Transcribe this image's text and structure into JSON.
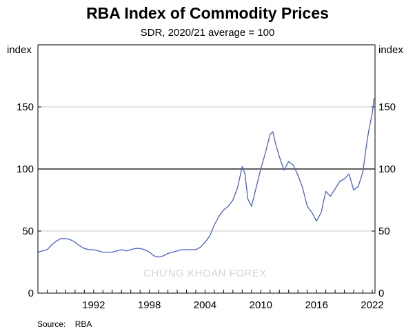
{
  "chart_data": {
    "type": "line",
    "title": "RBA Index of Commodity Prices",
    "subtitle": "SDR, 2020/21 average = 100",
    "ylabel_left": "index",
    "ylabel_right": "index",
    "ylim": [
      0,
      200
    ],
    "xlim": [
      1986.0,
      2022.3
    ],
    "x_ticks": [
      "1992",
      "1998",
      "2004",
      "2010",
      "2016",
      "2022"
    ],
    "y_ticks": [
      0,
      50,
      100,
      150
    ],
    "reference_line": 100,
    "grid": "horizontal",
    "line_color": "#4a5fc8",
    "series": [
      {
        "x": [
          1986.0,
          1986.5,
          1987.0,
          1987.5,
          1988.0,
          1988.5,
          1989.0,
          1989.5,
          1990.0,
          1990.5,
          1991.0,
          1991.5,
          1992.0,
          1992.5,
          1993.0,
          1993.5,
          1994.0,
          1994.5,
          1995.0,
          1995.5,
          1996.0,
          1996.5,
          1997.0,
          1997.5,
          1998.0,
          1998.5,
          1999.0,
          1999.5,
          2000.0,
          2000.5,
          2001.0,
          2001.5,
          2002.0,
          2002.5,
          2003.0,
          2003.5,
          2004.0,
          2004.5,
          2005.0,
          2005.5,
          2006.0,
          2006.5,
          2007.0,
          2007.5,
          2008.0,
          2008.3,
          2008.6,
          2009.0,
          2009.5,
          2010.0,
          2010.5,
          2011.0,
          2011.3,
          2011.6,
          2012.0,
          2012.5,
          2013.0,
          2013.5,
          2014.0,
          2014.5,
          2015.0,
          2015.5,
          2016.0,
          2016.5,
          2017.0,
          2017.5,
          2018.0,
          2018.5,
          2019.0,
          2019.5,
          2020.0,
          2020.5,
          2021.0,
          2021.3,
          2021.6,
          2022.0,
          2022.2
        ],
        "y": [
          33,
          34,
          35,
          39,
          42,
          44,
          44,
          43,
          41,
          38,
          36,
          35,
          35,
          34,
          33,
          33,
          33,
          34,
          35,
          34,
          35,
          36,
          36,
          35,
          33,
          30,
          29,
          30,
          32,
          33,
          34,
          35,
          35,
          35,
          35,
          37,
          41,
          46,
          55,
          62,
          67,
          70,
          75,
          85,
          102,
          96,
          76,
          70,
          85,
          100,
          113,
          128,
          130,
          120,
          110,
          99,
          106,
          103,
          95,
          85,
          70,
          65,
          58,
          65,
          82,
          78,
          84,
          90,
          92,
          96,
          83,
          86,
          98,
          115,
          130,
          145,
          157
        ]
      }
    ],
    "source_label": "Source:",
    "source_value": "RBA"
  },
  "watermark": "CHỨNG KHOÁN  FOREX"
}
